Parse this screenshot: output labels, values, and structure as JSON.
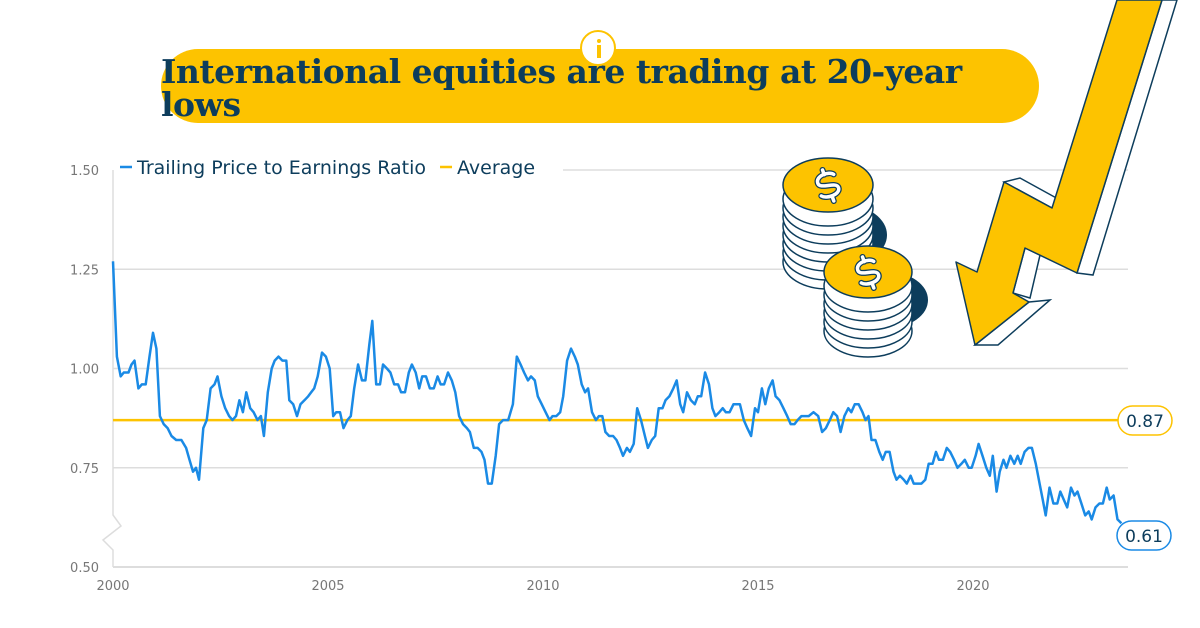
{
  "title": "International equities are trading at 20-year lows",
  "info_icon": "info-icon",
  "colors": {
    "series": "#1a8ae5",
    "average": "#fdc300",
    "title_bg": "#fdc300",
    "text": "#0d3d5c"
  },
  "chart_data": {
    "type": "line",
    "title": "International equities are trading at 20-year lows",
    "xlabel": "",
    "ylabel": "",
    "xlim": [
      2000,
      2023.5
    ],
    "ylim": [
      0.5,
      1.5
    ],
    "x_ticks": [
      "2000",
      "2005",
      "2010",
      "2015",
      "2020"
    ],
    "y_ticks": [
      "0.50",
      "0.75",
      "1.00",
      "1.25",
      "1.50"
    ],
    "grid": "horizontal",
    "y_axis_break": true,
    "legend_placement": "top-left",
    "legend": [
      "Trailing Price to Earnings Ratio",
      "Average"
    ],
    "series": [
      {
        "name": "Trailing Price to Earnings Ratio",
        "color": "#1a8ae5",
        "end_label": "0.61",
        "points": [
          [
            2000.0,
            1.27
          ],
          [
            2000.09,
            1.03
          ],
          [
            2000.18,
            0.98
          ],
          [
            2000.25,
            0.99
          ],
          [
            2000.36,
            0.99
          ],
          [
            2000.43,
            1.01
          ],
          [
            2000.5,
            1.02
          ],
          [
            2000.59,
            0.95
          ],
          [
            2000.67,
            0.96
          ],
          [
            2000.76,
            0.96
          ],
          [
            2000.85,
            1.03
          ],
          [
            2000.93,
            1.09
          ],
          [
            2001.01,
            1.05
          ],
          [
            2001.09,
            0.88
          ],
          [
            2001.18,
            0.86
          ],
          [
            2001.27,
            0.85
          ],
          [
            2001.36,
            0.83
          ],
          [
            2001.47,
            0.82
          ],
          [
            2001.59,
            0.82
          ],
          [
            2001.7,
            0.8
          ],
          [
            2001.78,
            0.77
          ],
          [
            2001.86,
            0.74
          ],
          [
            2001.93,
            0.75
          ],
          [
            2002.0,
            0.72
          ],
          [
            2002.1,
            0.85
          ],
          [
            2002.18,
            0.87
          ],
          [
            2002.27,
            0.95
          ],
          [
            2002.36,
            0.96
          ],
          [
            2002.43,
            0.98
          ],
          [
            2002.52,
            0.93
          ],
          [
            2002.61,
            0.9
          ],
          [
            2002.7,
            0.88
          ],
          [
            2002.78,
            0.87
          ],
          [
            2002.86,
            0.88
          ],
          [
            2002.94,
            0.92
          ],
          [
            2003.02,
            0.89
          ],
          [
            2003.1,
            0.94
          ],
          [
            2003.19,
            0.9
          ],
          [
            2003.27,
            0.89
          ],
          [
            2003.36,
            0.87
          ],
          [
            2003.44,
            0.88
          ],
          [
            2003.51,
            0.83
          ],
          [
            2003.6,
            0.94
          ],
          [
            2003.69,
            1.0
          ],
          [
            2003.76,
            1.02
          ],
          [
            2003.85,
            1.03
          ],
          [
            2003.94,
            1.02
          ],
          [
            2004.03,
            1.02
          ],
          [
            2004.1,
            0.92
          ],
          [
            2004.19,
            0.91
          ],
          [
            2004.28,
            0.88
          ],
          [
            2004.36,
            0.91
          ],
          [
            2004.45,
            0.92
          ],
          [
            2004.54,
            0.93
          ],
          [
            2004.61,
            0.94
          ],
          [
            2004.68,
            0.95
          ],
          [
            2004.76,
            0.98
          ],
          [
            2004.86,
            1.04
          ],
          [
            2004.95,
            1.03
          ],
          [
            2005.04,
            1.0
          ],
          [
            2005.12,
            0.88
          ],
          [
            2005.19,
            0.89
          ],
          [
            2005.28,
            0.89
          ],
          [
            2005.36,
            0.85
          ],
          [
            2005.45,
            0.87
          ],
          [
            2005.53,
            0.88
          ],
          [
            2005.61,
            0.95
          ],
          [
            2005.7,
            1.01
          ],
          [
            2005.79,
            0.97
          ],
          [
            2005.87,
            0.97
          ],
          [
            2005.96,
            1.06
          ],
          [
            2006.03,
            1.12
          ],
          [
            2006.12,
            0.96
          ],
          [
            2006.21,
            0.96
          ],
          [
            2006.28,
            1.01
          ],
          [
            2006.37,
            1.0
          ],
          [
            2006.45,
            0.99
          ],
          [
            2006.54,
            0.96
          ],
          [
            2006.63,
            0.96
          ],
          [
            2006.7,
            0.94
          ],
          [
            2006.79,
            0.94
          ],
          [
            2006.88,
            0.99
          ],
          [
            2006.95,
            1.01
          ],
          [
            2007.04,
            0.99
          ],
          [
            2007.12,
            0.95
          ],
          [
            2007.19,
            0.98
          ],
          [
            2007.28,
            0.98
          ],
          [
            2007.37,
            0.95
          ],
          [
            2007.46,
            0.95
          ],
          [
            2007.55,
            0.98
          ],
          [
            2007.62,
            0.96
          ],
          [
            2007.7,
            0.96
          ],
          [
            2007.79,
            0.99
          ],
          [
            2007.88,
            0.97
          ],
          [
            2007.96,
            0.94
          ],
          [
            2008.05,
            0.88
          ],
          [
            2008.14,
            0.86
          ],
          [
            2008.23,
            0.85
          ],
          [
            2008.3,
            0.84
          ],
          [
            2008.39,
            0.8
          ],
          [
            2008.48,
            0.8
          ],
          [
            2008.57,
            0.79
          ],
          [
            2008.64,
            0.77
          ],
          [
            2008.72,
            0.71
          ],
          [
            2008.81,
            0.71
          ],
          [
            2008.9,
            0.78
          ],
          [
            2008.98,
            0.86
          ],
          [
            2009.07,
            0.87
          ],
          [
            2009.19,
            0.87
          ],
          [
            2009.3,
            0.91
          ],
          [
            2009.39,
            1.03
          ],
          [
            2009.48,
            1.01
          ],
          [
            2009.56,
            0.99
          ],
          [
            2009.65,
            0.97
          ],
          [
            2009.72,
            0.98
          ],
          [
            2009.81,
            0.97
          ],
          [
            2009.88,
            0.93
          ],
          [
            2009.97,
            0.91
          ],
          [
            2010.06,
            0.89
          ],
          [
            2010.15,
            0.87
          ],
          [
            2010.22,
            0.88
          ],
          [
            2010.31,
            0.88
          ],
          [
            2010.4,
            0.89
          ],
          [
            2010.47,
            0.93
          ],
          [
            2010.56,
            1.02
          ],
          [
            2010.65,
            1.05
          ],
          [
            2010.74,
            1.03
          ],
          [
            2010.81,
            1.01
          ],
          [
            2010.9,
            0.96
          ],
          [
            2010.98,
            0.94
          ],
          [
            2011.05,
            0.95
          ],
          [
            2011.14,
            0.89
          ],
          [
            2011.23,
            0.87
          ],
          [
            2011.3,
            0.88
          ],
          [
            2011.38,
            0.88
          ],
          [
            2011.45,
            0.84
          ],
          [
            2011.54,
            0.83
          ],
          [
            2011.63,
            0.83
          ],
          [
            2011.71,
            0.82
          ],
          [
            2011.79,
            0.8
          ],
          [
            2011.86,
            0.78
          ],
          [
            2011.95,
            0.8
          ],
          [
            2012.02,
            0.79
          ],
          [
            2012.11,
            0.81
          ],
          [
            2012.19,
            0.9
          ],
          [
            2012.28,
            0.87
          ],
          [
            2012.37,
            0.83
          ],
          [
            2012.44,
            0.8
          ],
          [
            2012.53,
            0.82
          ],
          [
            2012.61,
            0.83
          ],
          [
            2012.69,
            0.9
          ],
          [
            2012.78,
            0.9
          ],
          [
            2012.85,
            0.92
          ],
          [
            2012.94,
            0.93
          ],
          [
            2013.03,
            0.95
          ],
          [
            2013.11,
            0.97
          ],
          [
            2013.19,
            0.91
          ],
          [
            2013.26,
            0.89
          ],
          [
            2013.35,
            0.94
          ],
          [
            2013.44,
            0.92
          ],
          [
            2013.53,
            0.91
          ],
          [
            2013.6,
            0.93
          ],
          [
            2013.68,
            0.93
          ],
          [
            2013.77,
            0.99
          ],
          [
            2013.86,
            0.96
          ],
          [
            2013.94,
            0.9
          ],
          [
            2014.01,
            0.88
          ],
          [
            2014.1,
            0.89
          ],
          [
            2014.18,
            0.9
          ],
          [
            2014.25,
            0.89
          ],
          [
            2014.34,
            0.89
          ],
          [
            2014.43,
            0.91
          ],
          [
            2014.58,
            0.91
          ],
          [
            2014.67,
            0.87
          ],
          [
            2014.75,
            0.85
          ],
          [
            2014.84,
            0.83
          ],
          [
            2014.93,
            0.9
          ],
          [
            2015.0,
            0.89
          ],
          [
            2015.09,
            0.95
          ],
          [
            2015.17,
            0.91
          ],
          [
            2015.25,
            0.95
          ],
          [
            2015.34,
            0.97
          ],
          [
            2015.41,
            0.93
          ],
          [
            2015.5,
            0.92
          ],
          [
            2015.59,
            0.9
          ],
          [
            2015.68,
            0.88
          ],
          [
            2015.76,
            0.86
          ],
          [
            2015.85,
            0.86
          ],
          [
            2015.92,
            0.87
          ],
          [
            2016.01,
            0.88
          ],
          [
            2016.18,
            0.88
          ],
          [
            2016.29,
            0.89
          ],
          [
            2016.4,
            0.88
          ],
          [
            2016.49,
            0.84
          ],
          [
            2016.58,
            0.85
          ],
          [
            2016.67,
            0.87
          ],
          [
            2016.75,
            0.89
          ],
          [
            2016.84,
            0.88
          ],
          [
            2016.92,
            0.84
          ],
          [
            2017.01,
            0.88
          ],
          [
            2017.1,
            0.9
          ],
          [
            2017.17,
            0.89
          ],
          [
            2017.25,
            0.91
          ],
          [
            2017.34,
            0.91
          ],
          [
            2017.43,
            0.89
          ],
          [
            2017.5,
            0.87
          ],
          [
            2017.57,
            0.88
          ],
          [
            2017.64,
            0.82
          ],
          [
            2017.73,
            0.82
          ],
          [
            2017.82,
            0.79
          ],
          [
            2017.9,
            0.77
          ],
          [
            2017.97,
            0.79
          ],
          [
            2018.06,
            0.79
          ],
          [
            2018.15,
            0.74
          ],
          [
            2018.22,
            0.72
          ],
          [
            2018.3,
            0.73
          ],
          [
            2018.39,
            0.72
          ],
          [
            2018.46,
            0.71
          ],
          [
            2018.55,
            0.73
          ],
          [
            2018.62,
            0.71
          ],
          [
            2018.8,
            0.71
          ],
          [
            2018.89,
            0.72
          ],
          [
            2018.97,
            0.76
          ],
          [
            2019.06,
            0.76
          ],
          [
            2019.14,
            0.79
          ],
          [
            2019.21,
            0.77
          ],
          [
            2019.3,
            0.77
          ],
          [
            2019.39,
            0.8
          ],
          [
            2019.47,
            0.79
          ],
          [
            2019.56,
            0.77
          ],
          [
            2019.64,
            0.75
          ],
          [
            2019.73,
            0.76
          ],
          [
            2019.81,
            0.77
          ],
          [
            2019.9,
            0.75
          ],
          [
            2019.97,
            0.75
          ],
          [
            2020.06,
            0.78
          ],
          [
            2020.13,
            0.81
          ],
          [
            2020.22,
            0.78
          ],
          [
            2020.31,
            0.75
          ],
          [
            2020.39,
            0.73
          ],
          [
            2020.46,
            0.78
          ],
          [
            2020.55,
            0.69
          ],
          [
            2020.62,
            0.74
          ],
          [
            2020.71,
            0.77
          ],
          [
            2020.78,
            0.75
          ],
          [
            2020.87,
            0.78
          ],
          [
            2020.96,
            0.76
          ],
          [
            2021.04,
            0.78
          ],
          [
            2021.11,
            0.76
          ],
          [
            2021.2,
            0.79
          ],
          [
            2021.29,
            0.8
          ],
          [
            2021.37,
            0.8
          ],
          [
            2021.46,
            0.76
          ],
          [
            2021.55,
            0.71
          ],
          [
            2021.62,
            0.67
          ],
          [
            2021.69,
            0.63
          ],
          [
            2021.78,
            0.7
          ],
          [
            2021.87,
            0.66
          ],
          [
            2021.96,
            0.66
          ],
          [
            2022.03,
            0.69
          ],
          [
            2022.11,
            0.67
          ],
          [
            2022.19,
            0.65
          ],
          [
            2022.28,
            0.7
          ],
          [
            2022.36,
            0.68
          ],
          [
            2022.43,
            0.69
          ],
          [
            2022.52,
            0.66
          ],
          [
            2022.61,
            0.63
          ],
          [
            2022.69,
            0.64
          ],
          [
            2022.76,
            0.62
          ],
          [
            2022.85,
            0.65
          ],
          [
            2022.94,
            0.66
          ],
          [
            2023.02,
            0.66
          ],
          [
            2023.11,
            0.7
          ],
          [
            2023.18,
            0.67
          ],
          [
            2023.27,
            0.68
          ],
          [
            2023.36,
            0.62
          ],
          [
            2023.45,
            0.61
          ]
        ]
      },
      {
        "name": "Average",
        "color": "#fdc300",
        "value": 0.87,
        "end_label": "0.87"
      }
    ]
  }
}
